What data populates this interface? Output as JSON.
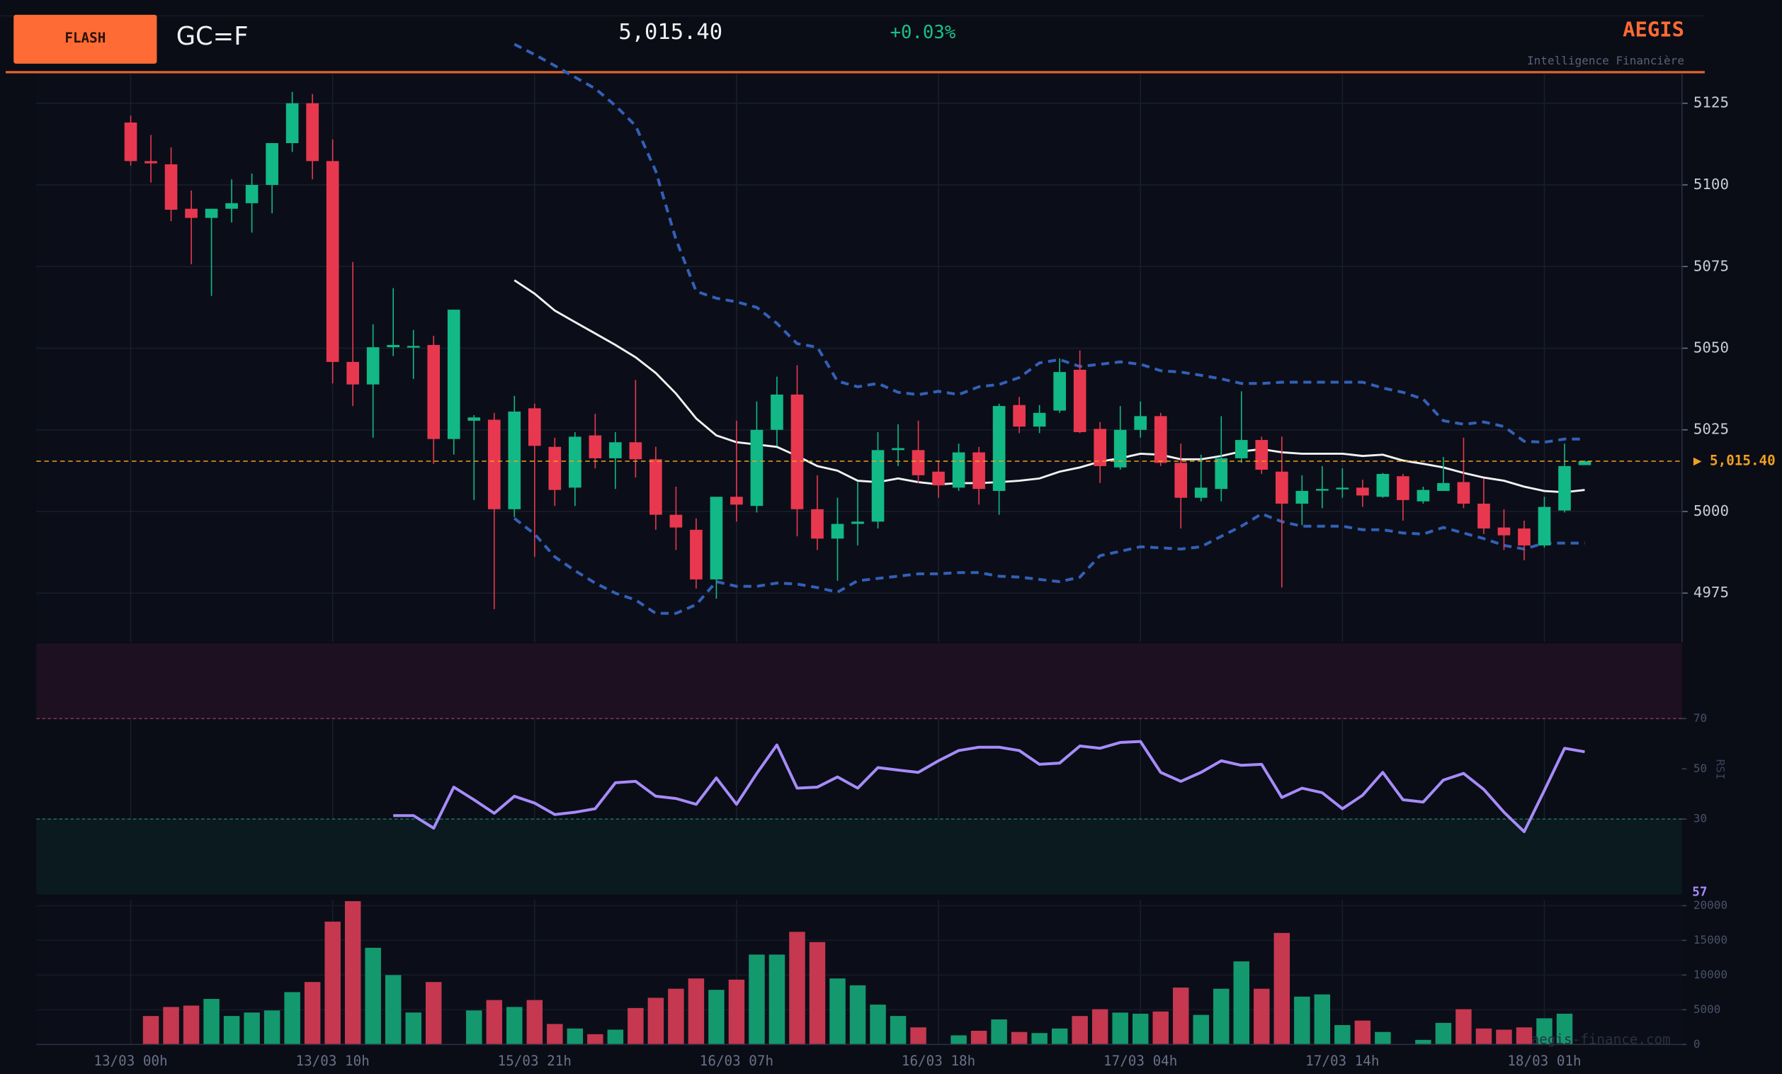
{
  "header": {
    "badge": "FLASH",
    "symbol": "GC=F",
    "price": "5,015.40",
    "change": "+0.03%",
    "brand": "AEGIS",
    "tagline": "Intelligence Financière",
    "watermark": "aegis-finance.com"
  },
  "chart_data": {
    "type": "candlestick",
    "categories": [
      "13/03 00h",
      null,
      null,
      null,
      null,
      null,
      null,
      null,
      null,
      null,
      "13/03 10h",
      null,
      null,
      null,
      null,
      null,
      null,
      null,
      null,
      null,
      "15/03 21h",
      null,
      null,
      null,
      null,
      null,
      null,
      null,
      null,
      null,
      "16/03 07h",
      null,
      null,
      null,
      null,
      null,
      null,
      null,
      null,
      null,
      "16/03 18h",
      null,
      null,
      null,
      null,
      null,
      null,
      null,
      null,
      null,
      "17/03 04h",
      null,
      null,
      null,
      null,
      null,
      null,
      null,
      null,
      null,
      "17/03 14h",
      null,
      null,
      null,
      null,
      null,
      null,
      null,
      null,
      null,
      "18/03 01h",
      null,
      null
    ],
    "open": [
      5119.1,
      5107.3,
      5106.3,
      5092.7,
      5089.9,
      5092.7,
      5094.4,
      5100.0,
      5112.8,
      5125.0,
      5107.3,
      5045.8,
      5038.9,
      5050.3,
      5050.3,
      5051.0,
      5022.2,
      5027.8,
      5028.1,
      5000.7,
      5031.6,
      5019.8,
      5007.3,
      5023.3,
      5016.3,
      5021.2,
      5016.0,
      4999.0,
      4994.4,
      4979.2,
      5004.5,
      5001.7,
      5025.0,
      5035.8,
      5000.7,
      4991.7,
      4996.2,
      4996.9,
      5018.8,
      5018.8,
      5012.2,
      5007.3,
      5018.1,
      5006.3,
      5032.6,
      5026.0,
      5030.9,
      5043.4,
      5025.3,
      5013.5,
      5025.0,
      5029.2,
      5014.9,
      5004.2,
      5006.9,
      5016.3,
      5021.9,
      5012.2,
      5002.4,
      5006.6,
      5006.9,
      5007.3,
      5004.5,
      5010.8,
      5003.1,
      5006.3,
      5009.0,
      5002.4,
      4995.1,
      4994.8,
      4989.6,
      5000.3,
      5014.2
    ],
    "high": [
      5121.2,
      5115.3,
      5111.5,
      5098.3,
      5092.7,
      5101.7,
      5103.5,
      5112.8,
      5128.5,
      5127.8,
      5113.9,
      5076.4,
      5057.3,
      5068.4,
      5055.6,
      5053.8,
      5061.8,
      5029.5,
      5030.2,
      5035.4,
      5033.0,
      5022.6,
      5024.3,
      5029.9,
      5024.3,
      5040.3,
      5019.8,
      5007.6,
      4997.9,
      5004.5,
      5027.8,
      5033.7,
      5041.3,
      5044.8,
      5011.1,
      5004.2,
      5009.0,
      5024.3,
      5026.7,
      5027.8,
      5015.6,
      5020.8,
      5019.8,
      5033.0,
      5035.1,
      5032.6,
      5046.9,
      5049.3,
      5027.4,
      5032.3,
      5033.7,
      5030.2,
      5020.8,
      5017.4,
      5029.2,
      5036.8,
      5022.9,
      5022.9,
      5011.1,
      5013.9,
      5013.2,
      5009.7,
      5011.8,
      5011.5,
      5007.6,
      5016.7,
      5022.6,
      5010.1,
      5000.7,
      4997.2,
      5004.5,
      5020.8,
      5015.6
    ],
    "low": [
      5105.9,
      5100.7,
      5088.9,
      5075.7,
      5066.0,
      5088.5,
      5085.4,
      5091.3,
      5110.1,
      5101.7,
      5039.2,
      5032.3,
      5022.6,
      5047.6,
      5040.6,
      5014.6,
      5017.4,
      5003.5,
      4970.1,
      4998.3,
      4986.1,
      5001.7,
      5001.7,
      5013.2,
      5006.9,
      5010.4,
      4994.4,
      4988.2,
      4976.4,
      4973.3,
      4996.9,
      4999.7,
      5020.1,
      4992.4,
      4988.2,
      4978.8,
      4989.6,
      4994.8,
      5013.9,
      5008.7,
      5004.2,
      5006.3,
      5002.1,
      4999.0,
      5024.0,
      5024.0,
      5030.2,
      5024.0,
      5008.7,
      5012.8,
      5022.6,
      5013.9,
      4994.8,
      5003.1,
      5003.1,
      5014.9,
      5011.5,
      4976.7,
      4995.8,
      5001.0,
      5004.2,
      5001.4,
      5004.2,
      4997.2,
      5002.4,
      5006.3,
      5001.0,
      4993.1,
      4988.2,
      4985.1,
      4988.9,
      4999.7,
      5014.2
    ],
    "close": [
      5107.3,
      5106.6,
      5092.4,
      5089.9,
      5092.7,
      5094.4,
      5100.0,
      5112.8,
      5125.0,
      5107.3,
      5045.8,
      5038.9,
      5050.3,
      5051.0,
      5050.7,
      5022.2,
      5061.8,
      5028.8,
      5000.7,
      5030.6,
      5020.1,
      5006.6,
      5022.9,
      5016.3,
      5021.2,
      5016.0,
      4999.0,
      4995.1,
      4979.2,
      5004.5,
      5002.1,
      5025.0,
      5035.8,
      5000.7,
      4991.7,
      4996.2,
      4996.9,
      5018.8,
      5019.4,
      5011.1,
      5008.0,
      5018.1,
      5006.9,
      5032.3,
      5026.0,
      5030.2,
      5042.7,
      5024.3,
      5013.9,
      5025.0,
      5029.2,
      5014.9,
      5004.2,
      5007.3,
      5016.3,
      5021.9,
      5012.8,
      5002.4,
      5006.3,
      5006.9,
      5007.3,
      5004.9,
      5011.5,
      5003.5,
      5006.6,
      5008.7,
      5002.4,
      4994.8,
      4992.7,
      4989.6,
      5001.4,
      5013.9,
      5015.4
    ],
    "up_color": "#12b886",
    "down_color": "#e8384f",
    "ylim": [
      4960,
      5134
    ],
    "yticks": [
      4975,
      5000,
      5025,
      5050,
      5075,
      5100,
      5125
    ],
    "grid": true,
    "last_price": 5015.4,
    "last_price_label": "▶ 5,015.40",
    "last_price_color": "#f0a020",
    "sma": {
      "color": "#f2f2f2",
      "values": [
        null,
        null,
        null,
        null,
        null,
        null,
        null,
        null,
        null,
        null,
        null,
        null,
        null,
        null,
        null,
        null,
        null,
        null,
        null,
        5070.8,
        5066.7,
        5061.5,
        5058.0,
        5054.5,
        5051.0,
        5047.2,
        5042.4,
        5036.1,
        5028.5,
        5023.3,
        5021.2,
        5020.5,
        5019.8,
        5017.0,
        5013.9,
        5012.5,
        5009.4,
        5009.0,
        5010.1,
        5009.0,
        5008.3,
        5008.7,
        5008.7,
        5009.0,
        5009.4,
        5010.1,
        5012.2,
        5013.5,
        5015.3,
        5016.3,
        5017.7,
        5017.4,
        5016.0,
        5016.0,
        5017.0,
        5018.4,
        5019.1,
        5018.1,
        5017.7,
        5017.7,
        5017.7,
        5017.0,
        5017.4,
        5015.6,
        5014.6,
        5013.5,
        5011.8,
        5010.4,
        5009.4,
        5007.6,
        5006.3,
        5005.9,
        5006.6
      ]
    },
    "bb_upper": {
      "color": "#3360b8",
      "values": [
        null,
        null,
        null,
        null,
        null,
        null,
        null,
        null,
        null,
        null,
        null,
        null,
        null,
        null,
        null,
        null,
        null,
        null,
        null,
        5143.1,
        5139.9,
        5136.5,
        5133.0,
        5129.5,
        5124.3,
        5118.1,
        5104.2,
        5083.3,
        5067.4,
        5065.3,
        5064.2,
        5062.5,
        5057.6,
        5051.4,
        5050.3,
        5039.9,
        5038.2,
        5039.2,
        5036.5,
        5035.8,
        5036.8,
        5035.8,
        5038.2,
        5038.9,
        5041.0,
        5045.5,
        5046.5,
        5044.4,
        5045.1,
        5045.8,
        5045.1,
        5043.1,
        5042.7,
        5041.7,
        5040.6,
        5039.2,
        5039.2,
        5039.6,
        5039.6,
        5039.6,
        5039.6,
        5039.6,
        5037.8,
        5036.5,
        5034.4,
        5027.8,
        5026.7,
        5027.4,
        5026.0,
        5021.5,
        5021.2,
        5022.2,
        5022.2
      ]
    },
    "bb_lower": {
      "color": "#3360b8",
      "values": [
        null,
        null,
        null,
        null,
        null,
        null,
        null,
        null,
        null,
        null,
        null,
        null,
        null,
        null,
        null,
        null,
        null,
        null,
        null,
        4997.9,
        4993.1,
        4986.1,
        4981.9,
        4978.1,
        4975.0,
        4972.9,
        4968.8,
        4968.8,
        4971.5,
        4978.5,
        4977.1,
        4977.1,
        4978.1,
        4977.8,
        4976.7,
        4975.3,
        4978.8,
        4979.5,
        4980.2,
        4980.9,
        4980.9,
        4981.3,
        4981.3,
        4980.2,
        4979.9,
        4979.2,
        4978.5,
        4979.9,
        4986.5,
        4987.8,
        4989.2,
        4988.9,
        4988.5,
        4989.2,
        4992.4,
        4995.5,
        4999.3,
        4996.9,
        4995.5,
        4995.5,
        4995.5,
        4994.4,
        4994.4,
        4993.4,
        4993.1,
        4995.1,
        4993.4,
        4991.7,
        4989.6,
        4988.5,
        4990.3,
        4990.3,
        4990.3
      ]
    },
    "rsi": {
      "label": "RSI",
      "color": "#a78bfa",
      "current": 57,
      "ylim": [
        0,
        100
      ],
      "yticks": [
        30,
        50,
        70
      ],
      "values": [
        null,
        null,
        null,
        null,
        null,
        null,
        null,
        null,
        null,
        null,
        null,
        null,
        null,
        31.4,
        31.4,
        26.4,
        42.7,
        37.7,
        32.3,
        39.1,
        36.4,
        31.8,
        32.7,
        34.1,
        44.5,
        45.0,
        39.1,
        38.2,
        35.9,
        46.4,
        35.9,
        48.2,
        59.5,
        42.3,
        42.7,
        46.8,
        42.3,
        50.5,
        49.5,
        48.6,
        53.2,
        57.3,
        58.6,
        58.6,
        57.3,
        51.8,
        52.3,
        59.1,
        58.2,
        60.5,
        60.9,
        48.6,
        45.0,
        48.6,
        53.2,
        51.4,
        51.8,
        38.6,
        42.3,
        40.5,
        34.1,
        39.5,
        48.6,
        37.7,
        36.8,
        45.5,
        48.2,
        41.8,
        32.7,
        25.0,
        41.4,
        58.2,
        56.8
      ]
    },
    "volume": {
      "up_color": "#14996f",
      "down_color": "#c53850",
      "ylim": [
        0,
        20800
      ],
      "yticks": [
        0,
        5000,
        10000,
        15000,
        20000
      ],
      "values": [
        0,
        4100,
        5400,
        5600,
        6560,
        4100,
        4600,
        4900,
        7540,
        9000,
        17700,
        20650,
        13930,
        10000,
        4600,
        9000,
        0,
        4900,
        6400,
        5400,
        6400,
        2950,
        2300,
        1480,
        2130,
        5250,
        6720,
        8030,
        9510,
        7870,
        9340,
        12950,
        12950,
        16230,
        14750,
        9510,
        8520,
        5740,
        4100,
        2460,
        0,
        1310,
        1970,
        3610,
        1800,
        1640,
        2300,
        4100,
        5080,
        4590,
        4430,
        4750,
        8200,
        4260,
        8030,
        11970,
        8030,
        16070,
        6890,
        7210,
        2790,
        3440,
        1800,
        0,
        660,
        3110,
        5080,
        2300,
        2130,
        2460,
        3770,
        4430,
        0
      ]
    }
  }
}
